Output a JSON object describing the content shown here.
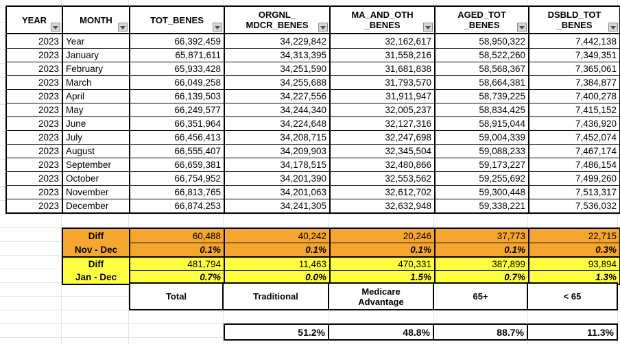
{
  "table": {
    "headers": [
      {
        "key": "year",
        "lines": [
          "YEAR"
        ]
      },
      {
        "key": "month",
        "lines": [
          "MONTH"
        ]
      },
      {
        "key": "tot-benes",
        "lines": [
          "TOT_BENES"
        ]
      },
      {
        "key": "orgnl-mdcr-benes",
        "lines": [
          "ORGNL_",
          "MDCR_BENES"
        ]
      },
      {
        "key": "ma-and-oth-benes",
        "lines": [
          "MA_AND_OTH",
          "_BENES"
        ]
      },
      {
        "key": "aged-tot-benes",
        "lines": [
          "AGED_TOT",
          "_BENES"
        ]
      },
      {
        "key": "dsbld-tot-benes",
        "lines": [
          "DSBLD_TOT",
          "_BENES"
        ]
      }
    ],
    "rows": [
      {
        "year": "2023",
        "month": "Year",
        "values": [
          "66,392,459",
          "34,229,842",
          "32,162,617",
          "58,950,322",
          "7,442,138"
        ]
      },
      {
        "year": "2023",
        "month": "January",
        "values": [
          "65,871,611",
          "34,313,395",
          "31,558,216",
          "58,522,260",
          "7,349,351"
        ]
      },
      {
        "year": "2023",
        "month": "February",
        "values": [
          "65,933,428",
          "34,251,590",
          "31,681,838",
          "58,568,367",
          "7,365,061"
        ]
      },
      {
        "year": "2023",
        "month": "March",
        "values": [
          "66,049,258",
          "34,255,688",
          "31,793,570",
          "58,664,381",
          "7,384,877"
        ]
      },
      {
        "year": "2023",
        "month": "April",
        "values": [
          "66,139,503",
          "34,227,556",
          "31,911,947",
          "58,739,225",
          "7,400,278"
        ]
      },
      {
        "year": "2023",
        "month": "May",
        "values": [
          "66,249,577",
          "34,244,340",
          "32,005,237",
          "58,834,425",
          "7,415,152"
        ]
      },
      {
        "year": "2023",
        "month": "June",
        "values": [
          "66,351,964",
          "34,224,648",
          "32,127,316",
          "58,915,044",
          "7,436,920"
        ]
      },
      {
        "year": "2023",
        "month": "July",
        "values": [
          "66,456,413",
          "34,208,715",
          "32,247,698",
          "59,004,339",
          "7,452,074"
        ]
      },
      {
        "year": "2023",
        "month": "August",
        "values": [
          "66,555,407",
          "34,209,903",
          "32,345,504",
          "59,088,233",
          "7,467,174"
        ]
      },
      {
        "year": "2023",
        "month": "September",
        "values": [
          "66,659,381",
          "34,178,515",
          "32,480,866",
          "59,173,227",
          "7,486,154"
        ]
      },
      {
        "year": "2023",
        "month": "October",
        "values": [
          "66,754,952",
          "34,201,390",
          "32,553,562",
          "59,255,692",
          "7,499,260"
        ]
      },
      {
        "year": "2023",
        "month": "November",
        "values": [
          "66,813,765",
          "34,201,063",
          "32,612,702",
          "59,300,448",
          "7,513,317"
        ]
      },
      {
        "year": "2023",
        "month": "December",
        "values": [
          "66,874,253",
          "34,241,305",
          "32,632,948",
          "59,338,221",
          "7,536,032"
        ]
      }
    ]
  },
  "summary": {
    "blocks": [
      {
        "name": "nov-dec",
        "fill": "#F5A62E",
        "diff_label": "Diff",
        "range_label": "Nov - Dec",
        "diff_values": [
          "60,488",
          "40,242",
          "20,246",
          "37,773",
          "22,715"
        ],
        "pct_values": [
          "0.1%",
          "0.1%",
          "0.1%",
          "0.1%",
          "0.3%"
        ]
      },
      {
        "name": "jan-dec",
        "fill": "#FFFF42",
        "diff_label": "Diff",
        "range_label": "Jan - Dec",
        "diff_values": [
          "481,794",
          "11,463",
          "470,331",
          "387,899",
          "93,894"
        ],
        "pct_values": [
          "0.7%",
          "0.0%",
          "1.5%",
          "0.7%",
          "1.3%"
        ]
      }
    ]
  },
  "footer": {
    "labels": [
      "Total",
      "Traditional",
      "Medicare Advantage",
      "65+",
      "< 65"
    ],
    "share_pcts": [
      "51.2%",
      "48.8%",
      "88.7%",
      "11.3%"
    ]
  }
}
